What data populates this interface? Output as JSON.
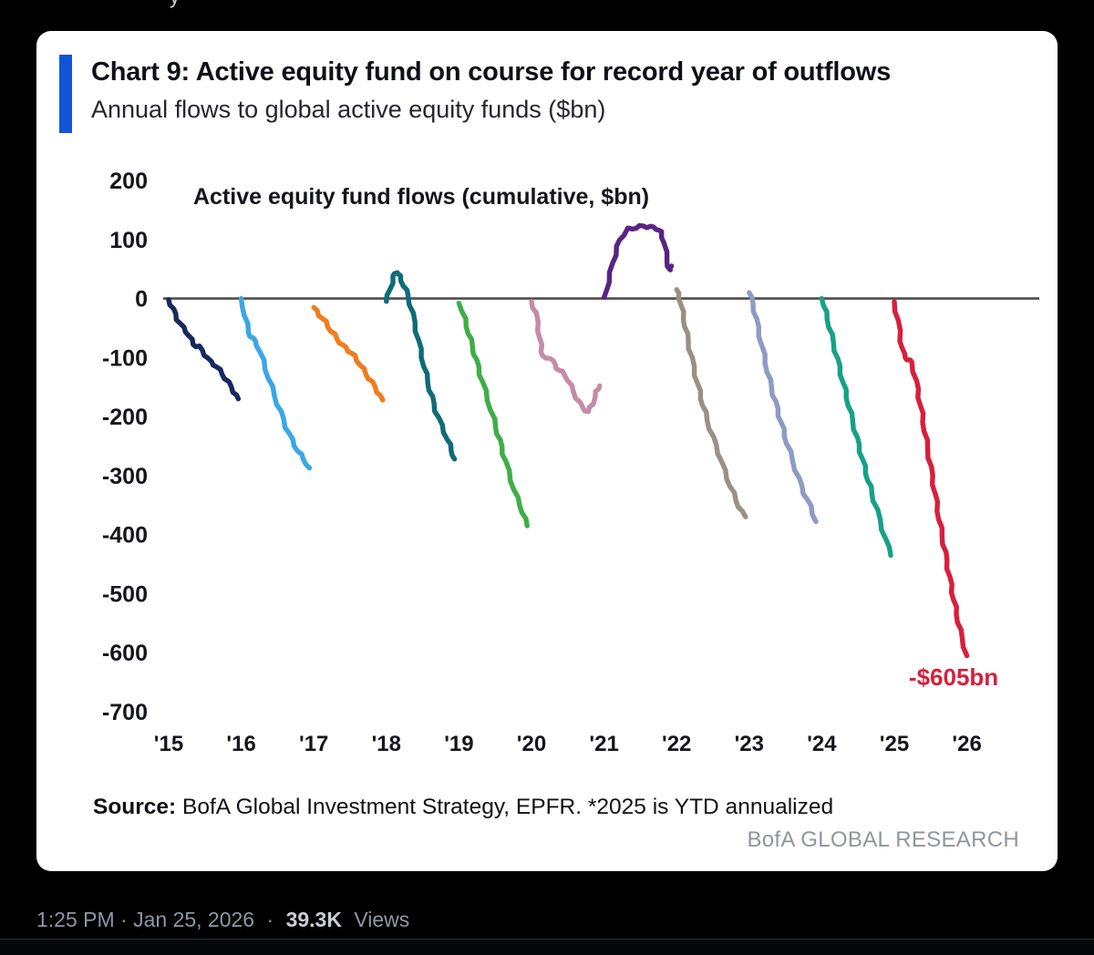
{
  "post": {
    "top_fragment": "y",
    "timestamp": "1:25 PM · Jan 25, 2026",
    "separator": "·",
    "views_count": "39.3K",
    "views_label": "Views"
  },
  "card": {
    "title": "Chart 9: Active equity fund on course for record year of outflows",
    "subtitle": "Annual flows to global active equity funds ($bn)",
    "source_label": "Source:",
    "source_text": " BofA Global Investment Strategy, EPFR. *2025 is YTD annualized",
    "brand": "BofA GLOBAL RESEARCH",
    "accent_color": "#1353d8"
  },
  "chart_data": {
    "type": "line",
    "title": "Active equity fund flows (cumulative, $bn)",
    "x_tick_labels": [
      "'15",
      "'16",
      "'17",
      "'18",
      "'19",
      "'20",
      "'21",
      "'22",
      "'23",
      "'24",
      "'25",
      "'26"
    ],
    "y_ticks": [
      200,
      100,
      0,
      -100,
      -200,
      -300,
      -400,
      -500,
      -600,
      -700
    ],
    "ylim": [
      -700,
      200
    ],
    "grid": false,
    "zero_line": true,
    "legend": "none",
    "annotation": {
      "text": "-$605bn",
      "x": 10.2,
      "y": -655,
      "color": "#d6203c"
    },
    "series": [
      {
        "name": "2015",
        "color": "#16295e",
        "start": 0,
        "end_value": -170,
        "points": [
          [
            0,
            -2
          ],
          [
            0.06,
            -18
          ],
          [
            0.12,
            -35
          ],
          [
            0.2,
            -50
          ],
          [
            0.28,
            -62
          ],
          [
            0.34,
            -78
          ],
          [
            0.42,
            -82
          ],
          [
            0.5,
            -95
          ],
          [
            0.58,
            -108
          ],
          [
            0.66,
            -115
          ],
          [
            0.74,
            -128
          ],
          [
            0.82,
            -142
          ],
          [
            0.9,
            -158
          ],
          [
            0.96,
            -170
          ]
        ]
      },
      {
        "name": "2016",
        "color": "#3aa7e6",
        "start": 1,
        "end_value": -287,
        "points": [
          [
            0,
            0
          ],
          [
            0.05,
            -28
          ],
          [
            0.1,
            -58
          ],
          [
            0.16,
            -68
          ],
          [
            0.22,
            -78
          ],
          [
            0.3,
            -105
          ],
          [
            0.38,
            -135
          ],
          [
            0.46,
            -165
          ],
          [
            0.54,
            -192
          ],
          [
            0.62,
            -218
          ],
          [
            0.7,
            -240
          ],
          [
            0.78,
            -258
          ],
          [
            0.86,
            -272
          ],
          [
            0.94,
            -287
          ]
        ]
      },
      {
        "name": "2017",
        "color": "#ef7d1f",
        "start": 2,
        "end_value": -172,
        "points": [
          [
            0,
            -15
          ],
          [
            0.08,
            -28
          ],
          [
            0.16,
            -40
          ],
          [
            0.24,
            -55
          ],
          [
            0.32,
            -68
          ],
          [
            0.4,
            -80
          ],
          [
            0.48,
            -88
          ],
          [
            0.56,
            -98
          ],
          [
            0.64,
            -112
          ],
          [
            0.72,
            -128
          ],
          [
            0.8,
            -142
          ],
          [
            0.88,
            -158
          ],
          [
            0.95,
            -172
          ]
        ]
      },
      {
        "name": "2018",
        "color": "#0f6b78",
        "start": 3,
        "end_value": -272,
        "points": [
          [
            0,
            -5
          ],
          [
            0.05,
            15
          ],
          [
            0.1,
            38
          ],
          [
            0.14,
            45
          ],
          [
            0.18,
            38
          ],
          [
            0.24,
            22
          ],
          [
            0.3,
            5
          ],
          [
            0.36,
            -25
          ],
          [
            0.44,
            -70
          ],
          [
            0.52,
            -115
          ],
          [
            0.6,
            -155
          ],
          [
            0.68,
            -190
          ],
          [
            0.76,
            -215
          ],
          [
            0.84,
            -238
          ],
          [
            0.9,
            -258
          ],
          [
            0.94,
            -272
          ]
        ]
      },
      {
        "name": "2019",
        "color": "#3fae47",
        "start": 4,
        "end_value": -385,
        "points": [
          [
            0,
            -8
          ],
          [
            0.08,
            -35
          ],
          [
            0.16,
            -70
          ],
          [
            0.24,
            -105
          ],
          [
            0.32,
            -140
          ],
          [
            0.4,
            -172
          ],
          [
            0.48,
            -205
          ],
          [
            0.56,
            -240
          ],
          [
            0.64,
            -275
          ],
          [
            0.72,
            -308
          ],
          [
            0.8,
            -338
          ],
          [
            0.88,
            -362
          ],
          [
            0.94,
            -385
          ]
        ]
      },
      {
        "name": "2020",
        "color": "#c58ca6",
        "start": 5,
        "end_value": -148,
        "points": [
          [
            0,
            -5
          ],
          [
            0.06,
            -25
          ],
          [
            0.1,
            -55
          ],
          [
            0.14,
            -90
          ],
          [
            0.18,
            -102
          ],
          [
            0.26,
            -100
          ],
          [
            0.32,
            -112
          ],
          [
            0.38,
            -122
          ],
          [
            0.46,
            -128
          ],
          [
            0.54,
            -148
          ],
          [
            0.62,
            -168
          ],
          [
            0.7,
            -185
          ],
          [
            0.78,
            -192
          ],
          [
            0.84,
            -178
          ],
          [
            0.9,
            -158
          ],
          [
            0.94,
            -148
          ]
        ]
      },
      {
        "name": "2021",
        "color": "#5a2383",
        "start": 6,
        "end_value": 55,
        "points": [
          [
            0,
            2
          ],
          [
            0.06,
            28
          ],
          [
            0.12,
            60
          ],
          [
            0.18,
            88
          ],
          [
            0.26,
            108
          ],
          [
            0.34,
            118
          ],
          [
            0.44,
            120
          ],
          [
            0.54,
            123
          ],
          [
            0.64,
            121
          ],
          [
            0.72,
            119
          ],
          [
            0.78,
            112
          ],
          [
            0.83,
            95
          ],
          [
            0.87,
            62
          ],
          [
            0.9,
            48
          ],
          [
            0.93,
            55
          ]
        ]
      },
      {
        "name": "2022",
        "color": "#9a9183",
        "start": 7,
        "end_value": -370,
        "points": [
          [
            0,
            15
          ],
          [
            0.04,
            2
          ],
          [
            0.1,
            -35
          ],
          [
            0.18,
            -85
          ],
          [
            0.26,
            -130
          ],
          [
            0.34,
            -170
          ],
          [
            0.42,
            -205
          ],
          [
            0.5,
            -235
          ],
          [
            0.58,
            -262
          ],
          [
            0.66,
            -292
          ],
          [
            0.74,
            -318
          ],
          [
            0.82,
            -342
          ],
          [
            0.9,
            -362
          ],
          [
            0.95,
            -370
          ]
        ]
      },
      {
        "name": "2023",
        "color": "#8d9cc4",
        "start": 8,
        "end_value": -378,
        "points": [
          [
            0,
            10
          ],
          [
            0.05,
            -8
          ],
          [
            0.12,
            -48
          ],
          [
            0.2,
            -95
          ],
          [
            0.28,
            -138
          ],
          [
            0.36,
            -175
          ],
          [
            0.44,
            -210
          ],
          [
            0.52,
            -245
          ],
          [
            0.6,
            -275
          ],
          [
            0.68,
            -305
          ],
          [
            0.76,
            -330
          ],
          [
            0.84,
            -352
          ],
          [
            0.92,
            -378
          ]
        ]
      },
      {
        "name": "2024",
        "color": "#17a186",
        "start": 9,
        "end_value": -435,
        "points": [
          [
            0,
            0
          ],
          [
            0.08,
            -35
          ],
          [
            0.16,
            -75
          ],
          [
            0.24,
            -115
          ],
          [
            0.32,
            -155
          ],
          [
            0.4,
            -195
          ],
          [
            0.48,
            -235
          ],
          [
            0.56,
            -272
          ],
          [
            0.64,
            -308
          ],
          [
            0.72,
            -342
          ],
          [
            0.8,
            -375
          ],
          [
            0.88,
            -408
          ],
          [
            0.95,
            -435
          ]
        ]
      },
      {
        "name": "2025",
        "color": "#d6203c",
        "start": 10,
        "end_value": -605,
        "points": [
          [
            0,
            -5
          ],
          [
            0.05,
            -38
          ],
          [
            0.09,
            -72
          ],
          [
            0.13,
            -95
          ],
          [
            0.18,
            -103
          ],
          [
            0.24,
            -108
          ],
          [
            0.3,
            -140
          ],
          [
            0.38,
            -195
          ],
          [
            0.46,
            -255
          ],
          [
            0.54,
            -315
          ],
          [
            0.62,
            -375
          ],
          [
            0.7,
            -430
          ],
          [
            0.78,
            -485
          ],
          [
            0.86,
            -535
          ],
          [
            0.93,
            -575
          ],
          [
            1.0,
            -605
          ]
        ]
      }
    ]
  }
}
